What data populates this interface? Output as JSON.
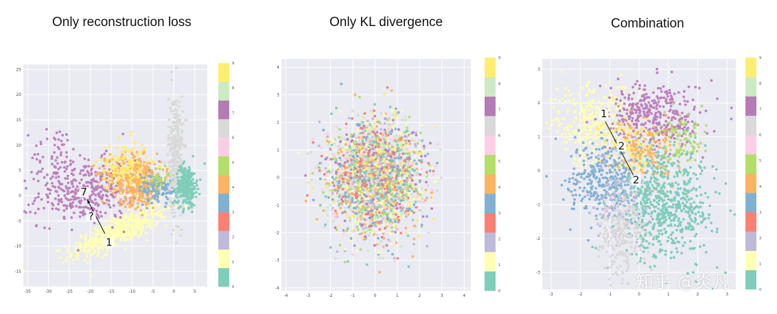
{
  "palette": {
    "0": "#7fcdbb",
    "1": "#ffffb3",
    "2": "#bebada",
    "3": "#fb8072",
    "4": "#80b1d3",
    "5": "#fdb462",
    "6": "#b3de69",
    "7": "#fccde5",
    "8": "#d9d9d9",
    "9": "#bc80bd",
    "8_colorbar": "#ccebc5",
    "9_colorbar": "#ffed6f"
  },
  "colorbar_colors": [
    "#7fcdbb",
    "#ffffb3",
    "#bebada",
    "#fb8072",
    "#80b1d3",
    "#fdb462",
    "#b3de69",
    "#fccde5",
    "#d9d9d9",
    "#b57bb6",
    "#ccebc5",
    "#ffed6f"
  ],
  "plot_background": "#eaeaf2",
  "watermark": "知乎 @炎凡",
  "chart_data": [
    {
      "type": "scatter",
      "title": "Only reconstruction loss",
      "xlim": [
        -36,
        8
      ],
      "ylim": [
        -18,
        26
      ],
      "xticks": [
        -35,
        -30,
        -25,
        -20,
        -15,
        -10,
        -5,
        0,
        5
      ],
      "yticks": [
        -15,
        -10,
        -5,
        0,
        5,
        10,
        15,
        20,
        25
      ],
      "grid": true,
      "colorbar": {
        "ticks": [
          "0",
          "1",
          "2",
          "3",
          "4",
          "5",
          "6",
          "7",
          "8",
          "9"
        ]
      },
      "annotations": [
        {
          "text": "7",
          "x": -21.5,
          "y": 0.2
        },
        {
          "text": "?",
          "x": -19.8,
          "y": -4.6
        },
        {
          "text": "1",
          "x": -15.5,
          "y": -9.8
        }
      ],
      "arrow": {
        "from": [
          -16.5,
          -7.5
        ],
        "to": [
          -20.7,
          -0.8
        ]
      },
      "clusters": [
        {
          "class": "1",
          "n": 520,
          "cx": -13,
          "cy": -7,
          "sx": 6,
          "sy": 1.4,
          "rot": 0.36
        },
        {
          "class": "9",
          "n": 380,
          "cx": -21,
          "cy": 1,
          "sx": 6,
          "sy": 3,
          "rot": 0.1
        },
        {
          "class": "9",
          "n": 60,
          "cx": -28,
          "cy": 8,
          "sx": 3,
          "sy": 3,
          "rot": 0
        },
        {
          "class": "5",
          "n": 450,
          "cx": -9,
          "cy": 3,
          "sx": 3.5,
          "sy": 2.4,
          "rot": -0.2
        },
        {
          "class": "9_colorbar",
          "n": 150,
          "cx": -12,
          "cy": 6,
          "sx": 3,
          "sy": 2.5,
          "rot": 0
        },
        {
          "class": "4",
          "n": 120,
          "cx": -3.5,
          "cy": 1.5,
          "sx": 2.5,
          "sy": 1.5,
          "rot": 0
        },
        {
          "class": "6",
          "n": 30,
          "cx": -3,
          "cy": 3.5,
          "sx": 1.5,
          "sy": 1,
          "rot": 0
        },
        {
          "class": "8",
          "n": 330,
          "cx": 0.5,
          "cy": 8,
          "sx": 0.9,
          "sy": 6,
          "rot": 0
        },
        {
          "class": "0",
          "n": 280,
          "cx": 3,
          "cy": 2,
          "sx": 1.2,
          "sy": 2,
          "rot": 0
        }
      ]
    },
    {
      "type": "scatter",
      "title": "Only KL divergence",
      "xlim": [
        -4.2,
        4.3
      ],
      "ylim": [
        -4.1,
        4.3
      ],
      "xticks": [
        -4,
        -3,
        -2,
        -1,
        0,
        1,
        2,
        3,
        4
      ],
      "yticks": [
        -4,
        -3,
        -2,
        -1,
        0,
        1,
        2,
        3,
        4
      ],
      "grid": true,
      "colorbar": {
        "ticks": [
          "0",
          "1",
          "2",
          "3",
          "4",
          "5",
          "6",
          "7",
          "8",
          "9"
        ]
      },
      "clusters": [
        {
          "class": "mixed",
          "n": 2600,
          "cx": 0,
          "cy": 0,
          "sx": 1,
          "sy": 1,
          "rot": 0
        }
      ]
    },
    {
      "type": "scatter",
      "title": "Combination",
      "xlim": [
        -3.3,
        3.3
      ],
      "ylim": [
        -3.5,
        3.3
      ],
      "xticks": [
        -3,
        -2,
        -1,
        0,
        1,
        2,
        3
      ],
      "yticks": [
        -3,
        -2,
        -1,
        0,
        1,
        2,
        3
      ],
      "grid": true,
      "colorbar": {
        "ticks": [
          "0",
          "1",
          "2",
          "3",
          "4",
          "5",
          "6",
          "7",
          "8",
          "9"
        ]
      },
      "annotations": [
        {
          "text": "1",
          "x": -1.2,
          "y": 1.6
        },
        {
          "text": "2",
          "x": -0.6,
          "y": 0.65
        },
        {
          "text": "2",
          "x": -0.1,
          "y": -0.35
        }
      ],
      "line": {
        "from": [
          -1.15,
          1.45
        ],
        "to": [
          -0.15,
          -0.2
        ]
      },
      "clusters": [
        {
          "class": "1",
          "n": 320,
          "cx": -1.6,
          "cy": 1.4,
          "sx": 0.7,
          "sy": 0.6,
          "rot": 0
        },
        {
          "class": "9",
          "n": 380,
          "cx": 0.6,
          "cy": 1.6,
          "sx": 0.8,
          "sy": 0.5,
          "rot": 0
        },
        {
          "class": "9_colorbar",
          "n": 160,
          "cx": -0.3,
          "cy": 0.8,
          "sx": 0.5,
          "sy": 0.4,
          "rot": 0
        },
        {
          "class": "5",
          "n": 140,
          "cx": 0.3,
          "cy": 0.5,
          "sx": 0.5,
          "sy": 0.4,
          "rot": 0
        },
        {
          "class": "6",
          "n": 90,
          "cx": 1.5,
          "cy": 0.8,
          "sx": 0.4,
          "sy": 0.4,
          "rot": 0
        },
        {
          "class": "4",
          "n": 320,
          "cx": -1.2,
          "cy": -0.2,
          "sx": 0.6,
          "sy": 0.6,
          "rot": 0
        },
        {
          "class": "2",
          "n": 150,
          "cx": -0.6,
          "cy": -0.9,
          "sx": 0.5,
          "sy": 0.6,
          "rot": 0
        },
        {
          "class": "0",
          "n": 620,
          "cx": 1.0,
          "cy": -1.0,
          "sx": 0.8,
          "sy": 0.8,
          "rot": 0
        },
        {
          "class": "8",
          "n": 230,
          "cx": -0.6,
          "cy": -1.9,
          "sx": 0.4,
          "sy": 0.6,
          "rot": 0
        }
      ]
    }
  ]
}
